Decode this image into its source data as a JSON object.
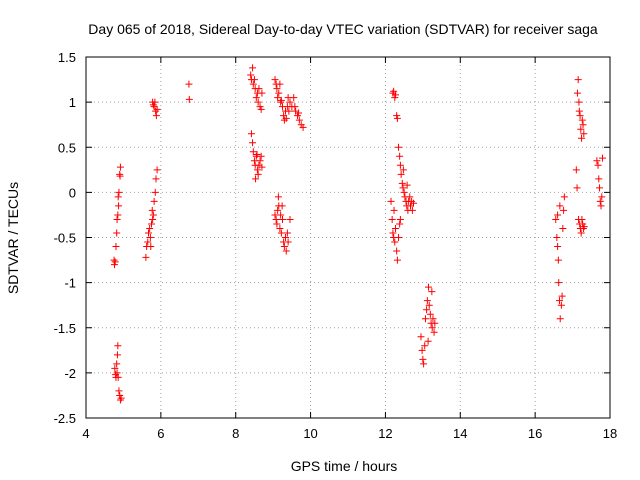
{
  "chart_data": {
    "type": "scatter",
    "title": "Day 065 of 2018, Sidereal Day-to-day VTEC variation (SDTVAR) for receiver saga",
    "xlabel": "GPS time / hours",
    "ylabel": "SDTVAR / TECUs",
    "xlim": [
      4,
      18
    ],
    "ylim": [
      -2.5,
      1.5
    ],
    "xticks": [
      4,
      6,
      8,
      10,
      12,
      14,
      16,
      18
    ],
    "yticks": [
      -2.5,
      -2,
      -1.5,
      -1,
      -0.5,
      0,
      0.5,
      1,
      1.5
    ],
    "xtick_labels": [
      "4",
      "6",
      "8",
      "10",
      "12",
      "14",
      "16",
      "18"
    ],
    "ytick_labels": [
      "-2.5",
      "-2",
      "-1.5",
      "-1",
      "-0.5",
      "0",
      "0.5",
      "1",
      "1.5"
    ],
    "grid": true,
    "marker": "+",
    "color": "#ff0000",
    "series": [
      {
        "name": "SDTVAR",
        "points": [
          [
            4.75,
            -0.75
          ],
          [
            4.76,
            -0.8
          ],
          [
            4.78,
            -0.77
          ],
          [
            4.8,
            -0.6
          ],
          [
            4.82,
            -0.45
          ],
          [
            4.83,
            -0.3
          ],
          [
            4.85,
            -0.25
          ],
          [
            4.87,
            -0.15
          ],
          [
            4.88,
            0.0
          ],
          [
            4.9,
            0.2
          ],
          [
            4.91,
            0.18
          ],
          [
            4.92,
            0.28
          ],
          [
            4.86,
            -0.05
          ],
          [
            4.77,
            -1.95
          ],
          [
            4.79,
            -2.02
          ],
          [
            4.8,
            -2.05
          ],
          [
            4.82,
            -1.9
          ],
          [
            4.84,
            -1.8
          ],
          [
            4.85,
            -1.7
          ],
          [
            4.83,
            -2.0
          ],
          [
            4.86,
            -2.05
          ],
          [
            4.88,
            -2.2
          ],
          [
            4.9,
            -2.25
          ],
          [
            4.92,
            -2.3
          ],
          [
            4.94,
            -2.28
          ],
          [
            5.6,
            -0.72
          ],
          [
            5.62,
            -0.6
          ],
          [
            5.65,
            -0.55
          ],
          [
            5.67,
            -0.45
          ],
          [
            5.7,
            -0.4
          ],
          [
            5.72,
            -0.5
          ],
          [
            5.75,
            -0.35
          ],
          [
            5.77,
            -0.2
          ],
          [
            5.8,
            -0.25
          ],
          [
            5.82,
            -0.1
          ],
          [
            5.85,
            0.0
          ],
          [
            5.87,
            0.15
          ],
          [
            5.9,
            0.25
          ],
          [
            5.78,
            -0.3
          ],
          [
            5.73,
            -0.6
          ],
          [
            5.78,
            1.0
          ],
          [
            5.8,
            0.97
          ],
          [
            5.82,
            0.95
          ],
          [
            5.84,
            1.0
          ],
          [
            5.86,
            0.9
          ],
          [
            5.88,
            0.85
          ],
          [
            5.9,
            0.92
          ],
          [
            6.75,
            1.2
          ],
          [
            6.76,
            1.03
          ],
          [
            8.4,
            1.3
          ],
          [
            8.42,
            1.25
          ],
          [
            8.45,
            1.38
          ],
          [
            8.47,
            1.2
          ],
          [
            8.5,
            1.25
          ],
          [
            8.52,
            1.15
          ],
          [
            8.55,
            1.05
          ],
          [
            8.58,
            1.1
          ],
          [
            8.6,
            1.0
          ],
          [
            8.62,
            1.15
          ],
          [
            8.65,
            0.95
          ],
          [
            8.68,
            0.92
          ],
          [
            8.7,
            1.1
          ],
          [
            8.42,
            0.65
          ],
          [
            8.45,
            0.55
          ],
          [
            8.47,
            0.45
          ],
          [
            8.5,
            0.35
          ],
          [
            8.52,
            0.3
          ],
          [
            8.55,
            0.4
          ],
          [
            8.58,
            0.25
          ],
          [
            8.6,
            0.2
          ],
          [
            8.62,
            0.3
          ],
          [
            8.65,
            0.35
          ],
          [
            8.68,
            0.4
          ],
          [
            8.7,
            0.28
          ],
          [
            8.53,
            0.15
          ],
          [
            8.57,
            0.42
          ],
          [
            9.05,
            1.25
          ],
          [
            9.08,
            1.2
          ],
          [
            9.1,
            1.15
          ],
          [
            9.12,
            1.05
          ],
          [
            9.15,
            1.1
          ],
          [
            9.18,
            1.2
          ],
          [
            9.2,
            1.0
          ],
          [
            9.22,
            1.02
          ],
          [
            9.25,
            0.95
          ],
          [
            9.28,
            0.85
          ],
          [
            9.3,
            0.8
          ],
          [
            9.33,
            0.9
          ],
          [
            9.35,
            0.82
          ],
          [
            9.38,
            0.95
          ],
          [
            9.4,
            1.05
          ],
          [
            9.45,
            1.0
          ],
          [
            9.5,
            0.95
          ],
          [
            9.55,
            1.05
          ],
          [
            9.6,
            0.9
          ],
          [
            9.65,
            0.85
          ],
          [
            9.7,
            0.8
          ],
          [
            9.75,
            0.75
          ],
          [
            9.8,
            0.72
          ],
          [
            9.42,
            0.9
          ],
          [
            9.58,
            0.95
          ],
          [
            9.68,
            0.88
          ],
          [
            9.05,
            -0.25
          ],
          [
            9.08,
            -0.3
          ],
          [
            9.1,
            -0.35
          ],
          [
            9.12,
            -0.2
          ],
          [
            9.15,
            -0.15
          ],
          [
            9.18,
            -0.4
          ],
          [
            9.2,
            -0.25
          ],
          [
            9.22,
            -0.45
          ],
          [
            9.25,
            -0.3
          ],
          [
            9.28,
            -0.55
          ],
          [
            9.3,
            -0.6
          ],
          [
            9.33,
            -0.5
          ],
          [
            9.35,
            -0.65
          ],
          [
            9.38,
            -0.45
          ],
          [
            9.4,
            -0.55
          ],
          [
            9.45,
            -0.3
          ],
          [
            9.14,
            -0.05
          ],
          [
            9.24,
            -0.15
          ],
          [
            12.15,
            -0.1
          ],
          [
            12.18,
            -0.3
          ],
          [
            12.2,
            -0.45
          ],
          [
            12.22,
            -0.5
          ],
          [
            12.25,
            -0.55
          ],
          [
            12.27,
            -0.4
          ],
          [
            12.3,
            -0.65
          ],
          [
            12.32,
            -0.75
          ],
          [
            12.35,
            -0.5
          ],
          [
            12.38,
            -0.35
          ],
          [
            12.4,
            -0.3
          ],
          [
            12.23,
            -0.2
          ],
          [
            12.2,
            1.1
          ],
          [
            12.22,
            1.12
          ],
          [
            12.25,
            1.05
          ],
          [
            12.27,
            1.08
          ],
          [
            12.3,
            0.85
          ],
          [
            12.32,
            0.82
          ],
          [
            12.35,
            0.5
          ],
          [
            12.38,
            0.4
          ],
          [
            12.4,
            0.3
          ],
          [
            12.42,
            0.2
          ],
          [
            12.45,
            0.1
          ],
          [
            12.47,
            0.05
          ],
          [
            12.5,
            0.0
          ],
          [
            12.52,
            -0.05
          ],
          [
            12.55,
            -0.1
          ],
          [
            12.57,
            -0.15
          ],
          [
            12.6,
            -0.2
          ],
          [
            12.62,
            -0.1
          ],
          [
            12.65,
            -0.05
          ],
          [
            12.67,
            -0.15
          ],
          [
            12.7,
            -0.1
          ],
          [
            12.72,
            -0.2
          ],
          [
            12.75,
            -0.12
          ],
          [
            12.48,
            0.25
          ],
          [
            12.58,
            0.08
          ],
          [
            12.95,
            -1.6
          ],
          [
            12.98,
            -1.75
          ],
          [
            13.0,
            -1.85
          ],
          [
            13.02,
            -1.9
          ],
          [
            13.05,
            -1.7
          ],
          [
            13.07,
            -1.4
          ],
          [
            13.1,
            -1.3
          ],
          [
            13.12,
            -1.2
          ],
          [
            13.15,
            -1.05
          ],
          [
            13.17,
            -1.25
          ],
          [
            13.2,
            -1.35
          ],
          [
            13.22,
            -1.45
          ],
          [
            13.25,
            -1.5
          ],
          [
            13.27,
            -1.4
          ],
          [
            13.3,
            -1.55
          ],
          [
            13.32,
            -1.45
          ],
          [
            13.14,
            -1.65
          ],
          [
            13.24,
            -1.1
          ],
          [
            16.55,
            -0.3
          ],
          [
            16.58,
            -0.5
          ],
          [
            16.6,
            -0.6
          ],
          [
            16.62,
            -0.75
          ],
          [
            16.63,
            -1.0
          ],
          [
            16.65,
            -1.2
          ],
          [
            16.67,
            -1.4
          ],
          [
            16.7,
            -1.25
          ],
          [
            16.72,
            -1.15
          ],
          [
            16.74,
            -0.4
          ],
          [
            16.76,
            -0.2
          ],
          [
            16.78,
            -0.05
          ],
          [
            16.6,
            -0.25
          ],
          [
            16.66,
            -0.15
          ],
          [
            17.1,
            0.25
          ],
          [
            17.12,
            0.05
          ],
          [
            17.13,
            1.1
          ],
          [
            17.15,
            1.25
          ],
          [
            17.17,
            1.0
          ],
          [
            17.18,
            0.9
          ],
          [
            17.2,
            0.85
          ],
          [
            17.22,
            0.7
          ],
          [
            17.24,
            0.6
          ],
          [
            17.26,
            0.8
          ],
          [
            17.28,
            0.75
          ],
          [
            17.3,
            0.65
          ],
          [
            17.16,
            -0.3
          ],
          [
            17.19,
            -0.35
          ],
          [
            17.21,
            -0.4
          ],
          [
            17.23,
            -0.45
          ],
          [
            17.25,
            -0.3
          ],
          [
            17.27,
            -0.35
          ],
          [
            17.29,
            -0.4
          ],
          [
            17.31,
            -0.38
          ],
          [
            17.65,
            0.35
          ],
          [
            17.68,
            0.3
          ],
          [
            17.7,
            0.15
          ],
          [
            17.72,
            0.05
          ],
          [
            17.74,
            -0.1
          ],
          [
            17.76,
            -0.15
          ],
          [
            17.78,
            -0.05
          ],
          [
            17.8,
            0.38
          ]
        ]
      }
    ]
  }
}
